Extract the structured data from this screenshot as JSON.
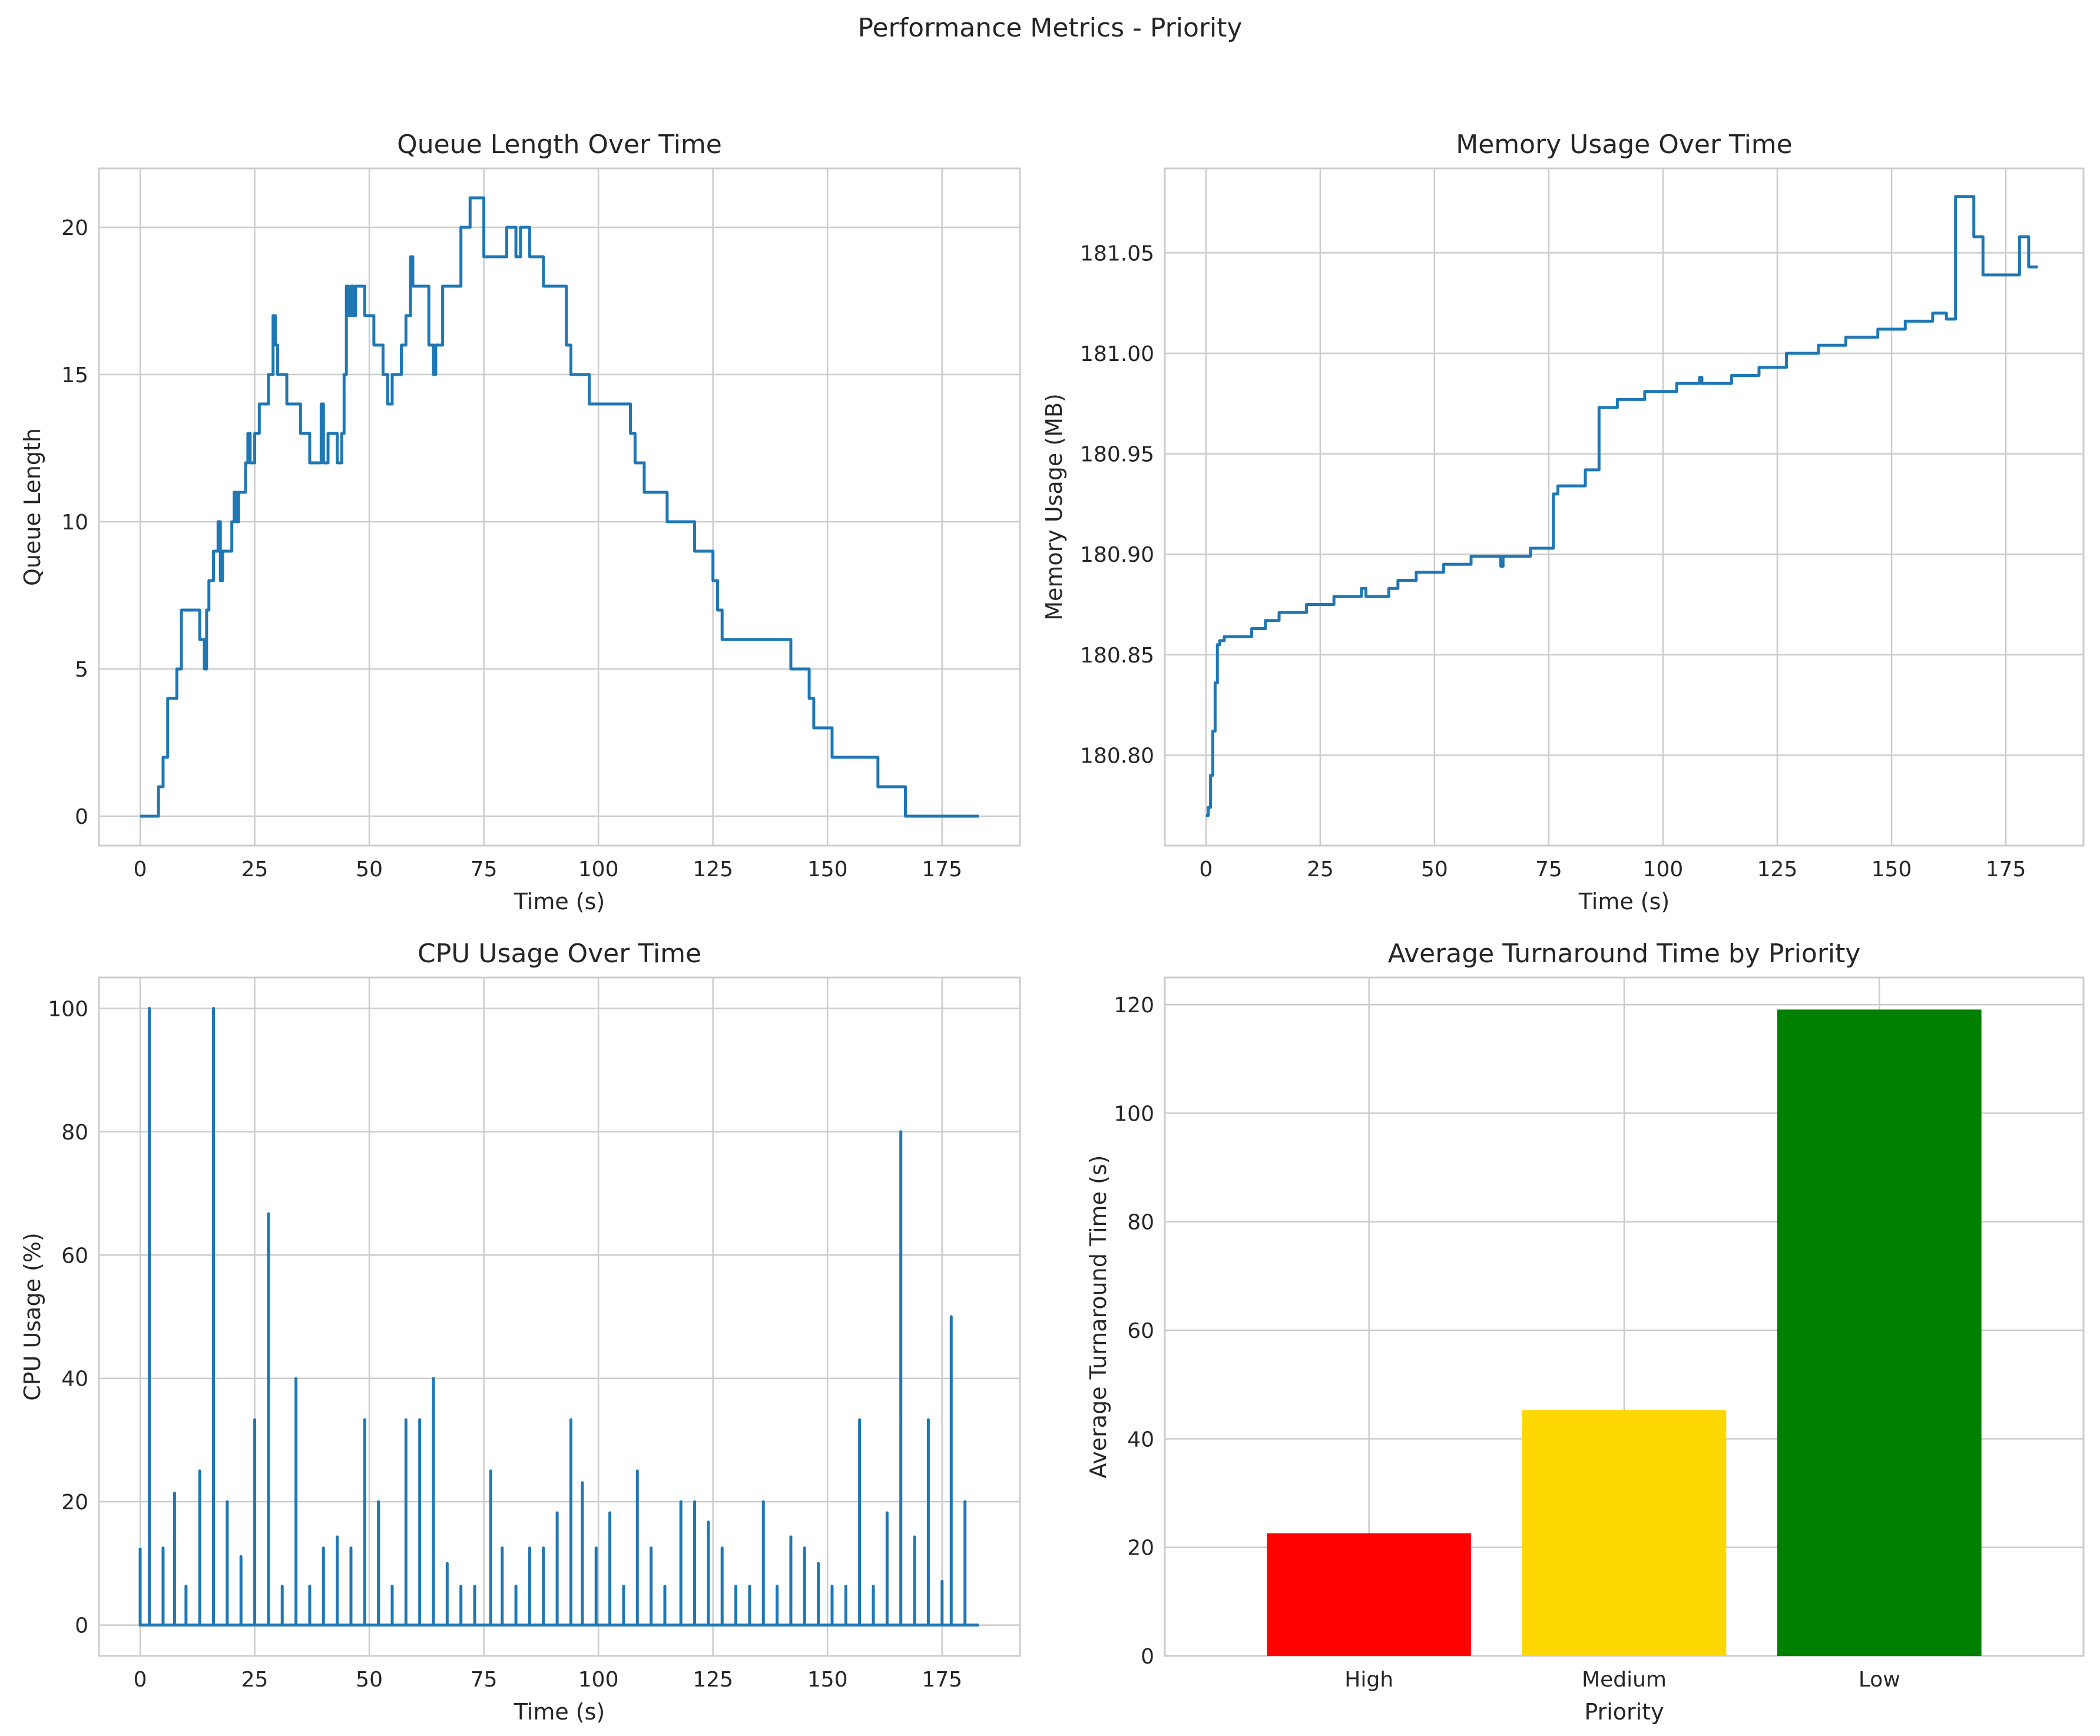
{
  "figure": {
    "suptitle": "Performance Metrics - Priority"
  },
  "chart_data": [
    {
      "id": "queue",
      "type": "line",
      "step": true,
      "title": "Queue Length Over Time",
      "xlabel": "Time (s)",
      "ylabel": "Queue Length",
      "xlim": [
        -9,
        192
      ],
      "ylim": [
        -1,
        22
      ],
      "xticks": [
        0,
        25,
        50,
        75,
        100,
        125,
        150,
        175
      ],
      "yticks": [
        0,
        5,
        10,
        15,
        20
      ],
      "grid": true,
      "color": "#1f77b4",
      "points": [
        [
          0,
          0
        ],
        [
          4,
          0
        ],
        [
          4,
          1
        ],
        [
          5,
          1
        ],
        [
          5,
          2
        ],
        [
          6,
          2
        ],
        [
          6,
          4
        ],
        [
          8,
          4
        ],
        [
          8,
          5
        ],
        [
          9,
          5
        ],
        [
          9,
          7
        ],
        [
          13,
          7
        ],
        [
          13,
          6
        ],
        [
          14,
          6
        ],
        [
          14,
          5
        ],
        [
          14.5,
          5
        ],
        [
          14.5,
          7
        ],
        [
          15,
          7
        ],
        [
          15,
          8
        ],
        [
          16,
          8
        ],
        [
          16,
          9
        ],
        [
          17,
          9
        ],
        [
          17,
          10
        ],
        [
          17.5,
          10
        ],
        [
          17.5,
          8
        ],
        [
          18,
          8
        ],
        [
          18,
          9
        ],
        [
          20,
          9
        ],
        [
          20,
          10
        ],
        [
          20.5,
          10
        ],
        [
          20.5,
          11
        ],
        [
          21,
          11
        ],
        [
          21,
          10
        ],
        [
          21.5,
          10
        ],
        [
          21.5,
          11
        ],
        [
          23,
          11
        ],
        [
          23,
          12
        ],
        [
          23.5,
          12
        ],
        [
          23.5,
          13
        ],
        [
          24,
          13
        ],
        [
          24,
          12
        ],
        [
          25,
          12
        ],
        [
          25,
          13
        ],
        [
          26,
          13
        ],
        [
          26,
          14
        ],
        [
          28,
          14
        ],
        [
          28,
          15
        ],
        [
          29,
          15
        ],
        [
          29,
          17
        ],
        [
          29.5,
          17
        ],
        [
          29.5,
          16
        ],
        [
          30,
          16
        ],
        [
          30,
          15
        ],
        [
          32,
          15
        ],
        [
          32,
          14
        ],
        [
          35,
          14
        ],
        [
          35,
          13
        ],
        [
          37,
          13
        ],
        [
          37,
          12
        ],
        [
          39.5,
          12
        ],
        [
          39.5,
          14
        ],
        [
          40,
          14
        ],
        [
          40,
          12
        ],
        [
          41,
          12
        ],
        [
          41,
          13
        ],
        [
          43,
          13
        ],
        [
          43,
          12
        ],
        [
          44,
          12
        ],
        [
          44,
          13
        ],
        [
          44.5,
          13
        ],
        [
          44.5,
          15
        ],
        [
          45,
          15
        ],
        [
          45,
          18
        ],
        [
          45.5,
          18
        ],
        [
          45.5,
          17
        ],
        [
          46,
          17
        ],
        [
          46,
          18
        ],
        [
          46.5,
          18
        ],
        [
          46.5,
          17
        ],
        [
          47,
          17
        ],
        [
          47,
          18
        ],
        [
          49,
          18
        ],
        [
          49,
          17
        ],
        [
          51,
          17
        ],
        [
          51,
          16
        ],
        [
          53,
          16
        ],
        [
          53,
          15
        ],
        [
          54,
          15
        ],
        [
          54,
          14
        ],
        [
          55,
          14
        ],
        [
          55,
          15
        ],
        [
          57,
          15
        ],
        [
          57,
          16
        ],
        [
          58,
          16
        ],
        [
          58,
          17
        ],
        [
          59,
          17
        ],
        [
          59,
          19
        ],
        [
          59.5,
          19
        ],
        [
          59.5,
          18
        ],
        [
          63,
          18
        ],
        [
          63,
          16
        ],
        [
          64,
          16
        ],
        [
          64,
          15
        ],
        [
          64.5,
          15
        ],
        [
          64.5,
          16
        ],
        [
          66,
          16
        ],
        [
          66,
          18
        ],
        [
          70,
          18
        ],
        [
          70,
          20
        ],
        [
          72,
          20
        ],
        [
          72,
          21
        ],
        [
          75,
          21
        ],
        [
          75,
          19
        ],
        [
          80,
          19
        ],
        [
          80,
          20
        ],
        [
          82,
          20
        ],
        [
          82,
          19
        ],
        [
          83,
          19
        ],
        [
          83,
          20
        ],
        [
          85,
          20
        ],
        [
          85,
          19
        ],
        [
          88,
          19
        ],
        [
          88,
          18
        ],
        [
          93,
          18
        ],
        [
          93,
          16
        ],
        [
          94,
          16
        ],
        [
          94,
          15
        ],
        [
          98,
          15
        ],
        [
          98,
          14
        ],
        [
          107,
          14
        ],
        [
          107,
          13
        ],
        [
          108,
          13
        ],
        [
          108,
          12
        ],
        [
          110,
          12
        ],
        [
          110,
          11
        ],
        [
          115,
          11
        ],
        [
          115,
          10
        ],
        [
          121,
          10
        ],
        [
          121,
          9
        ],
        [
          125,
          9
        ],
        [
          125,
          8
        ],
        [
          126,
          8
        ],
        [
          126,
          7
        ],
        [
          127,
          7
        ],
        [
          127,
          6
        ],
        [
          142,
          6
        ],
        [
          142,
          5
        ],
        [
          146,
          5
        ],
        [
          146,
          4
        ],
        [
          147,
          4
        ],
        [
          147,
          3
        ],
        [
          151,
          3
        ],
        [
          151,
          2
        ],
        [
          161,
          2
        ],
        [
          161,
          1
        ],
        [
          167,
          1
        ],
        [
          167,
          0
        ],
        [
          183,
          0
        ]
      ]
    },
    {
      "id": "memory",
      "type": "line",
      "step": true,
      "title": "Memory Usage Over Time",
      "xlabel": "Time (s)",
      "ylabel": "Memory Usage (MB)",
      "xlim": [
        -9,
        192
      ],
      "ylim": [
        180.755,
        181.092
      ],
      "xticks": [
        0,
        25,
        50,
        75,
        100,
        125,
        150,
        175
      ],
      "yticks": [
        180.8,
        180.85,
        180.9,
        180.95,
        181.0,
        181.05
      ],
      "ytick_labels": [
        "180.80",
        "180.85",
        "180.90",
        "180.95",
        "181.00",
        "181.05"
      ],
      "grid": true,
      "color": "#1f77b4",
      "points": [
        [
          0,
          180.77
        ],
        [
          0.5,
          180.77
        ],
        [
          0.5,
          180.774
        ],
        [
          1,
          180.774
        ],
        [
          1,
          180.79
        ],
        [
          1.5,
          180.79
        ],
        [
          1.5,
          180.812
        ],
        [
          2,
          180.812
        ],
        [
          2,
          180.836
        ],
        [
          2.5,
          180.836
        ],
        [
          2.5,
          180.855
        ],
        [
          3,
          180.855
        ],
        [
          3,
          180.857
        ],
        [
          4,
          180.857
        ],
        [
          4,
          180.859
        ],
        [
          10,
          180.859
        ],
        [
          10,
          180.863
        ],
        [
          13,
          180.863
        ],
        [
          13,
          180.867
        ],
        [
          16,
          180.867
        ],
        [
          16,
          180.871
        ],
        [
          22,
          180.871
        ],
        [
          22,
          180.875
        ],
        [
          28,
          180.875
        ],
        [
          28,
          180.879
        ],
        [
          34,
          180.879
        ],
        [
          34,
          180.883
        ],
        [
          35,
          180.883
        ],
        [
          35,
          180.879
        ],
        [
          40,
          180.879
        ],
        [
          40,
          180.883
        ],
        [
          42,
          180.883
        ],
        [
          42,
          180.887
        ],
        [
          46,
          180.887
        ],
        [
          46,
          180.891
        ],
        [
          52,
          180.891
        ],
        [
          52,
          180.895
        ],
        [
          58,
          180.895
        ],
        [
          58,
          180.899
        ],
        [
          64,
          180.899
        ],
        [
          64.5,
          180.899
        ],
        [
          64.5,
          180.894
        ],
        [
          65,
          180.894
        ],
        [
          65,
          180.899
        ],
        [
          71,
          180.899
        ],
        [
          71,
          180.903
        ],
        [
          76,
          180.903
        ],
        [
          76,
          180.93
        ],
        [
          77,
          180.93
        ],
        [
          77,
          180.934
        ],
        [
          83,
          180.934
        ],
        [
          83,
          180.942
        ],
        [
          86,
          180.942
        ],
        [
          86,
          180.973
        ],
        [
          90,
          180.973
        ],
        [
          90,
          180.977
        ],
        [
          96,
          180.977
        ],
        [
          96,
          180.981
        ],
        [
          103,
          180.981
        ],
        [
          103,
          180.985
        ],
        [
          108,
          180.985
        ],
        [
          108,
          180.988
        ],
        [
          108.5,
          180.988
        ],
        [
          108.5,
          180.985
        ],
        [
          115,
          180.985
        ],
        [
          115,
          180.989
        ],
        [
          121,
          180.989
        ],
        [
          121,
          180.993
        ],
        [
          127,
          180.993
        ],
        [
          127,
          181.0
        ],
        [
          134,
          181.0
        ],
        [
          134,
          181.004
        ],
        [
          140,
          181.004
        ],
        [
          140,
          181.008
        ],
        [
          147,
          181.008
        ],
        [
          147,
          181.012
        ],
        [
          153,
          181.012
        ],
        [
          153,
          181.016
        ],
        [
          159,
          181.016
        ],
        [
          159,
          181.02
        ],
        [
          162,
          181.02
        ],
        [
          162,
          181.017
        ],
        [
          164,
          181.017
        ],
        [
          164,
          181.078
        ],
        [
          168,
          181.078
        ],
        [
          168,
          181.058
        ],
        [
          170,
          181.058
        ],
        [
          170,
          181.039
        ],
        [
          178,
          181.039
        ],
        [
          178,
          181.058
        ],
        [
          180,
          181.058
        ],
        [
          180,
          181.043
        ],
        [
          182,
          181.043
        ]
      ]
    },
    {
      "id": "cpu",
      "type": "line",
      "spikes": true,
      "title": "CPU Usage Over Time",
      "xlabel": "Time (s)",
      "ylabel": "CPU Usage (%)",
      "xlim": [
        -9,
        192
      ],
      "ylim": [
        -5,
        105
      ],
      "xticks": [
        0,
        25,
        50,
        75,
        100,
        125,
        150,
        175
      ],
      "yticks": [
        0,
        20,
        40,
        60,
        80,
        100
      ],
      "grid": true,
      "color": "#1f77b4",
      "x_end": 183,
      "start_value": 12.5,
      "spikes_data": [
        [
          2,
          100
        ],
        [
          5,
          12.5
        ],
        [
          7.5,
          21.4
        ],
        [
          10,
          6.3
        ],
        [
          13,
          25
        ],
        [
          16,
          100
        ],
        [
          19,
          20
        ],
        [
          22,
          11.1
        ],
        [
          25,
          33.3
        ],
        [
          28,
          66.7
        ],
        [
          31,
          6.3
        ],
        [
          34,
          40
        ],
        [
          37,
          6.3
        ],
        [
          40,
          12.5
        ],
        [
          43,
          14.3
        ],
        [
          46,
          12.5
        ],
        [
          49,
          33.3
        ],
        [
          52,
          20
        ],
        [
          55,
          6.3
        ],
        [
          58,
          33.3
        ],
        [
          61,
          33.3
        ],
        [
          64,
          40
        ],
        [
          67,
          10
        ],
        [
          70,
          6.3
        ],
        [
          73,
          6.3
        ],
        [
          76.5,
          25
        ],
        [
          79,
          12.5
        ],
        [
          82,
          6.3
        ],
        [
          85,
          12.5
        ],
        [
          88,
          12.5
        ],
        [
          91,
          18.2
        ],
        [
          94,
          33.3
        ],
        [
          96.5,
          23.1
        ],
        [
          99.5,
          12.5
        ],
        [
          102.5,
          18.2
        ],
        [
          105.5,
          6.3
        ],
        [
          108.5,
          25
        ],
        [
          111.5,
          12.5
        ],
        [
          114.5,
          6.3
        ],
        [
          118,
          20
        ],
        [
          121,
          20
        ],
        [
          124,
          16.7
        ],
        [
          127,
          12.5
        ],
        [
          130,
          6.3
        ],
        [
          133,
          6.3
        ],
        [
          136,
          20
        ],
        [
          139,
          6.3
        ],
        [
          142,
          14.3
        ],
        [
          145,
          12.5
        ],
        [
          148,
          10
        ],
        [
          151,
          6.3
        ],
        [
          154,
          6.3
        ],
        [
          157,
          33.3
        ],
        [
          160,
          6.3
        ],
        [
          163,
          18.2
        ],
        [
          166,
          80
        ],
        [
          169,
          14.3
        ],
        [
          172,
          33.3
        ],
        [
          175,
          7.1
        ],
        [
          177,
          50
        ],
        [
          180,
          20
        ]
      ]
    },
    {
      "id": "turnaround",
      "type": "bar",
      "title": "Average Turnaround Time by Priority",
      "xlabel": "Priority",
      "ylabel": "Average Turnaround Time (s)",
      "categories": [
        "High",
        "Medium",
        "Low"
      ],
      "values": [
        22.6,
        45.3,
        119.1
      ],
      "colors": [
        "#ff0000",
        "#ffd700",
        "#008000"
      ],
      "ylim": [
        0,
        125
      ],
      "yticks": [
        0,
        20,
        40,
        60,
        80,
        100,
        120
      ],
      "grid": true
    }
  ]
}
